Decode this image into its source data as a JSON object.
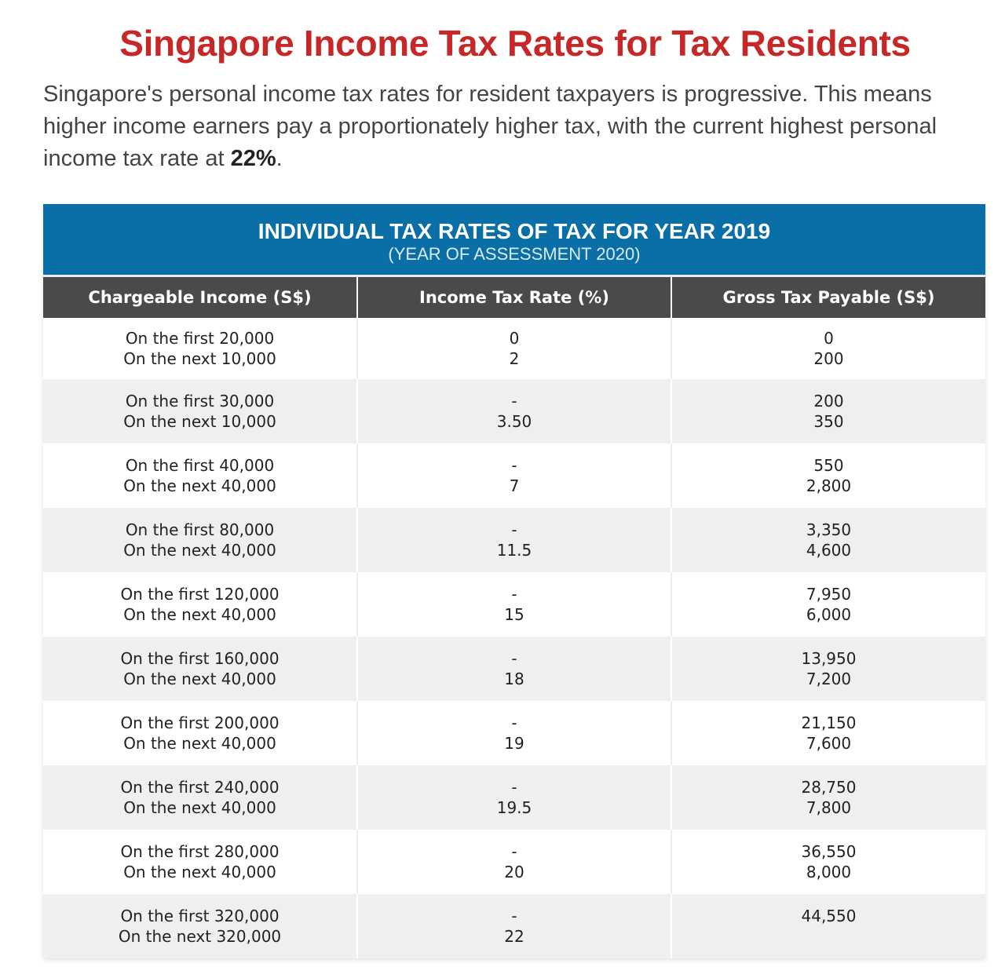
{
  "colors": {
    "title": "#c62828",
    "banner": "#0a6fa6",
    "header": "#4a4a4a"
  },
  "title": "Singapore Income Tax Rates for Tax Residents",
  "intro": {
    "text": "Singapore's personal income tax rates for resident taxpayers is progressive. This means higher income earners pay a proportionately higher tax, with the current highest personal income tax rate at ",
    "highlight": "22%",
    "end": "."
  },
  "table": {
    "banner_title": "INDIVIDUAL TAX RATES OF TAX FOR YEAR 2019",
    "banner_subtitle": "(YEAR OF ASSESSMENT 2020)",
    "columns": [
      "Chargeable Income (S$)",
      "Income Tax Rate (%)",
      "Gross Tax Payable (S$)"
    ],
    "rows": [
      {
        "income": [
          "On the first 20,000",
          "On the next 10,000"
        ],
        "rate": [
          "0",
          "2"
        ],
        "payable": [
          "0",
          "200"
        ]
      },
      {
        "income": [
          "On the first 30,000",
          "On the next 10,000"
        ],
        "rate": [
          "-",
          "3.50"
        ],
        "payable": [
          "200",
          "350"
        ]
      },
      {
        "income": [
          "On the first 40,000",
          "On the next 40,000"
        ],
        "rate": [
          "-",
          "7"
        ],
        "payable": [
          "550",
          "2,800"
        ]
      },
      {
        "income": [
          "On the first 80,000",
          "On the next 40,000"
        ],
        "rate": [
          "-",
          "11.5"
        ],
        "payable": [
          "3,350",
          "4,600"
        ]
      },
      {
        "income": [
          "On the first 120,000",
          "On the next 40,000"
        ],
        "rate": [
          "-",
          "15"
        ],
        "payable": [
          "7,950",
          "6,000"
        ]
      },
      {
        "income": [
          "On the first 160,000",
          "On the next 40,000"
        ],
        "rate": [
          "-",
          "18"
        ],
        "payable": [
          "13,950",
          "7,200"
        ]
      },
      {
        "income": [
          "On the first 200,000",
          "On the next 40,000"
        ],
        "rate": [
          "-",
          "19"
        ],
        "payable": [
          "21,150",
          "7,600"
        ]
      },
      {
        "income": [
          "On the first 240,000",
          "On the next 40,000"
        ],
        "rate": [
          "-",
          "19.5"
        ],
        "payable": [
          "28,750",
          "7,800"
        ]
      },
      {
        "income": [
          "On the first 280,000",
          "On the next 40,000"
        ],
        "rate": [
          "-",
          "20"
        ],
        "payable": [
          "36,550",
          "8,000"
        ]
      },
      {
        "income": [
          "On the first 320,000",
          "On the next 320,000"
        ],
        "rate": [
          "-",
          "22"
        ],
        "payable": [
          "44,550",
          ""
        ]
      }
    ]
  }
}
